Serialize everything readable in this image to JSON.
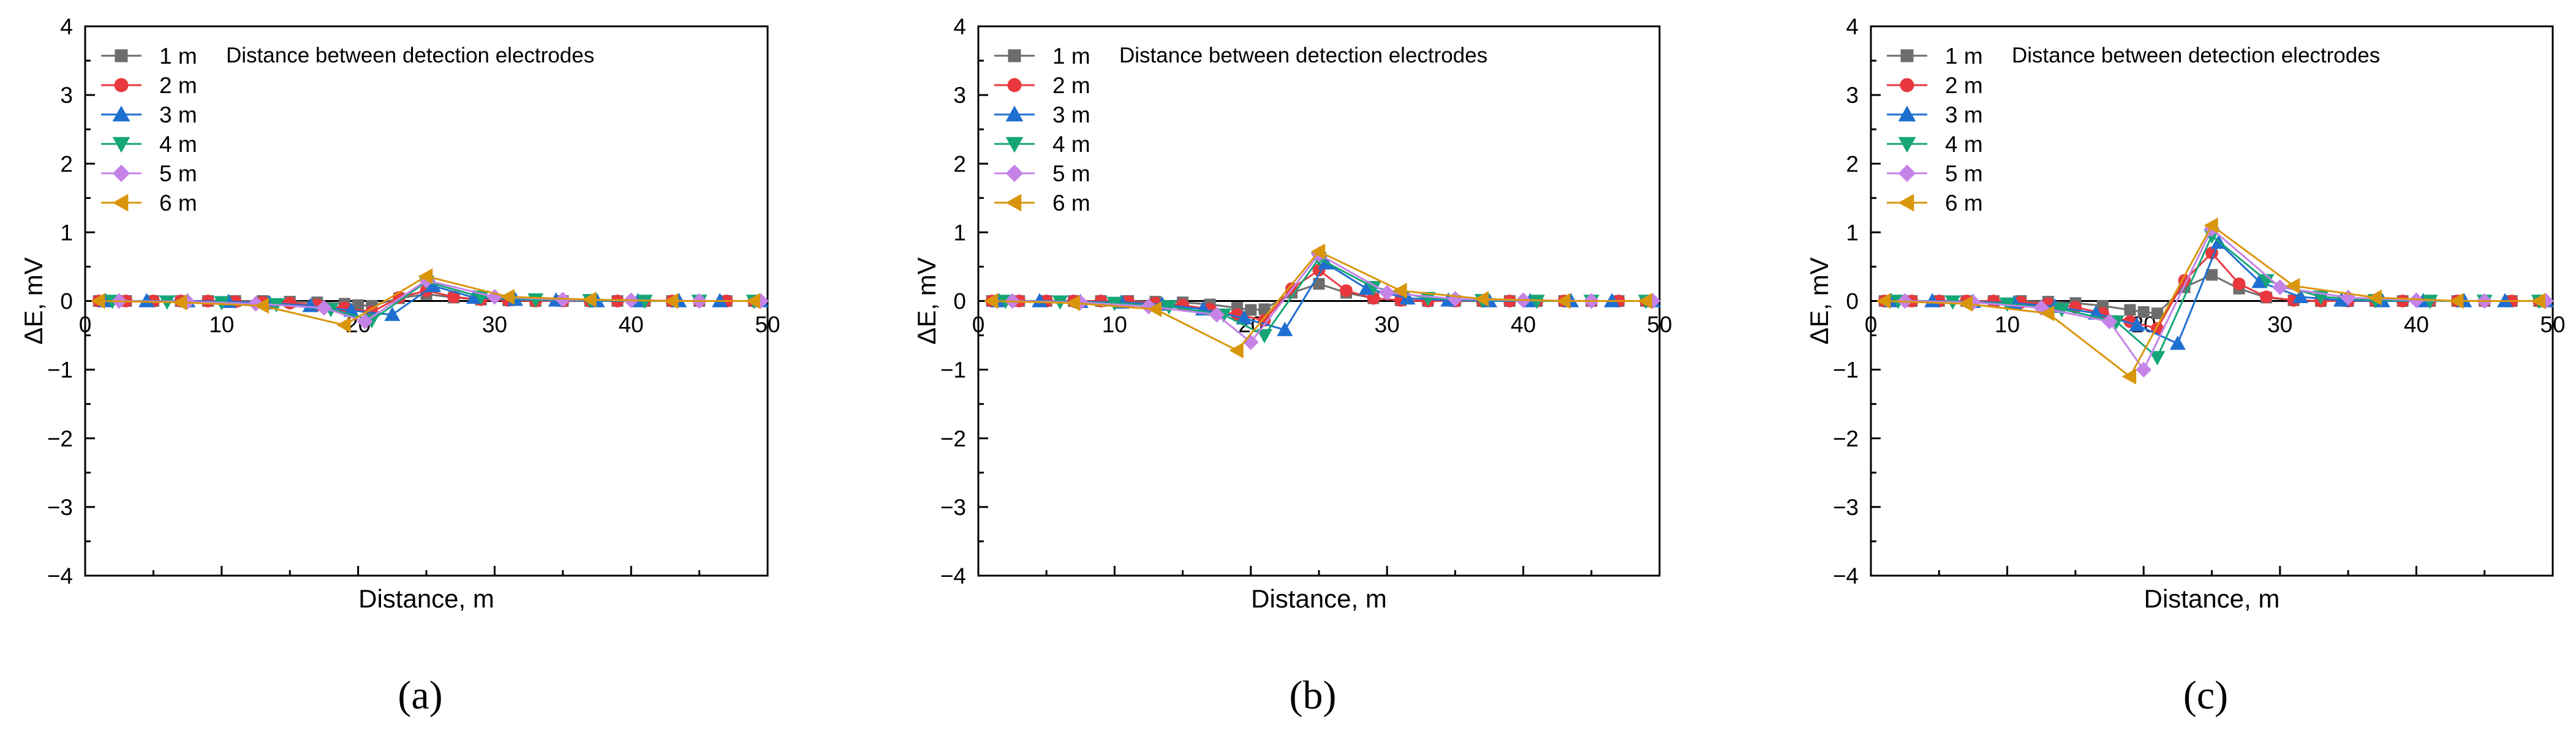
{
  "figure": {
    "panel_labels": [
      "(a)",
      "(b)",
      "(c)"
    ],
    "series_colors": [
      "#6d6d6d",
      "#e8383d",
      "#1f6fd0",
      "#15a677",
      "#c583e8",
      "#d9960c"
    ],
    "series_markers": [
      "square-icon",
      "circle-icon",
      "triangle-up-icon",
      "triangle-down-icon",
      "diamond-icon",
      "triangle-left-icon"
    ]
  },
  "chart_data": [
    {
      "type": "line",
      "panel": "(a)",
      "title": "",
      "xlabel": "Distance, m",
      "ylabel": "ΔE, mV",
      "xlim": [
        0,
        50
      ],
      "ylim": [
        -4,
        4
      ],
      "xticks": [
        0,
        10,
        20,
        30,
        40,
        50
      ],
      "yticks": [
        -4,
        -3,
        -2,
        -1,
        0,
        1,
        2,
        3,
        4
      ],
      "legend_title": "Distance between detection electrodes",
      "legend_position": "top-left",
      "series": [
        {
          "name": "1 m",
          "x": [
            1,
            3,
            5,
            7,
            9,
            11,
            13,
            15,
            17,
            19,
            20,
            21,
            23,
            25,
            27,
            29,
            31,
            33,
            35,
            37,
            39,
            41,
            43,
            45,
            47,
            49
          ],
          "y": [
            0,
            0,
            0,
            0,
            0,
            0,
            0,
            -0.01,
            -0.02,
            -0.04,
            -0.06,
            -0.07,
            0.04,
            0.1,
            0.05,
            0.02,
            0.01,
            0,
            0,
            0,
            0,
            0,
            0,
            0,
            0,
            0
          ]
        },
        {
          "name": "2 m",
          "x": [
            1,
            3,
            5,
            7,
            9,
            11,
            13,
            15,
            17,
            19,
            21,
            23,
            25,
            27,
            29,
            31,
            33,
            35,
            37,
            39,
            41,
            43,
            45,
            47,
            49
          ],
          "y": [
            0,
            0,
            0,
            0,
            0,
            -0.01,
            -0.02,
            -0.03,
            -0.06,
            -0.1,
            -0.16,
            0.05,
            0.15,
            0.06,
            0.02,
            0.01,
            0,
            0,
            0,
            0,
            0,
            0,
            0,
            0,
            0
          ]
        },
        {
          "name": "3 m",
          "x": [
            1.5,
            4.5,
            7.5,
            10.5,
            13.5,
            16.5,
            19.5,
            22.5,
            25.5,
            28.5,
            31.5,
            34.5,
            37.5,
            40.5,
            43.5,
            46.5,
            49.5
          ],
          "y": [
            0,
            0,
            0,
            -0.01,
            -0.03,
            -0.07,
            -0.14,
            -0.2,
            0.22,
            0.05,
            0.02,
            0.01,
            0,
            0,
            0,
            0,
            0
          ]
        },
        {
          "name": "4 m",
          "x": [
            2,
            6,
            10,
            14,
            18,
            21,
            25,
            29,
            33,
            37,
            41,
            45,
            49
          ],
          "y": [
            0,
            -0.01,
            -0.02,
            -0.05,
            -0.12,
            -0.28,
            0.28,
            0.06,
            0.02,
            0.01,
            0,
            0,
            0
          ]
        },
        {
          "name": "5 m",
          "x": [
            2.5,
            7.5,
            12.5,
            17.5,
            20.5,
            25,
            30,
            35,
            40,
            45,
            49.5
          ],
          "y": [
            0,
            -0.01,
            -0.04,
            -0.1,
            -0.3,
            0.3,
            0.06,
            0.02,
            0.01,
            0,
            0
          ]
        },
        {
          "name": "6 m",
          "x": [
            1,
            7,
            13,
            19,
            25,
            31,
            37,
            43,
            49
          ],
          "y": [
            0,
            -0.02,
            -0.07,
            -0.35,
            0.36,
            0.06,
            0.02,
            0,
            0
          ]
        }
      ]
    },
    {
      "type": "line",
      "panel": "(b)",
      "title": "",
      "xlabel": "Distance, m",
      "ylabel": "ΔE, mV",
      "xlim": [
        0,
        50
      ],
      "ylim": [
        -4,
        4
      ],
      "xticks": [
        0,
        10,
        20,
        30,
        40,
        50
      ],
      "yticks": [
        -4,
        -3,
        -2,
        -1,
        0,
        1,
        2,
        3,
        4
      ],
      "legend_title": "Distance between detection electrodes",
      "legend_position": "top-left",
      "series": [
        {
          "name": "1 m",
          "x": [
            1,
            3,
            5,
            7,
            9,
            11,
            13,
            15,
            17,
            19,
            20,
            21,
            23,
            25,
            27,
            29,
            31,
            33,
            35,
            37,
            39,
            41,
            43,
            45,
            47,
            49
          ],
          "y": [
            0,
            0,
            0,
            0,
            0,
            0,
            -0.01,
            -0.02,
            -0.05,
            -0.1,
            -0.13,
            -0.12,
            0.12,
            0.25,
            0.12,
            0.04,
            0.01,
            0,
            0,
            0,
            0,
            0,
            0,
            0,
            0,
            0
          ]
        },
        {
          "name": "2 m",
          "x": [
            1,
            3,
            5,
            7,
            9,
            11,
            13,
            15,
            17,
            19,
            21,
            23,
            25,
            27,
            29,
            31,
            33,
            35,
            37,
            39,
            41,
            43,
            45,
            47,
            49
          ],
          "y": [
            0,
            0,
            0,
            0,
            0,
            -0.01,
            -0.03,
            -0.06,
            -0.12,
            -0.2,
            -0.28,
            0.18,
            0.45,
            0.15,
            0.04,
            0.01,
            0,
            0,
            0,
            0,
            0,
            0,
            0,
            0,
            0
          ]
        },
        {
          "name": "3 m",
          "x": [
            1.5,
            4.5,
            7.5,
            10.5,
            13.5,
            16.5,
            19.5,
            22.5,
            25.5,
            28.5,
            31.5,
            34.5,
            37.5,
            40.5,
            43.5,
            46.5,
            49.5
          ],
          "y": [
            0,
            0,
            -0.01,
            -0.02,
            -0.05,
            -0.12,
            -0.25,
            -0.42,
            0.55,
            0.18,
            0.04,
            0.01,
            0,
            0,
            0,
            0,
            0
          ]
        },
        {
          "name": "4 m",
          "x": [
            2,
            6,
            10,
            14,
            18,
            21,
            25,
            29,
            33,
            37,
            41,
            45,
            49
          ],
          "y": [
            0,
            -0.01,
            -0.03,
            -0.08,
            -0.2,
            -0.5,
            0.62,
            0.2,
            0.04,
            0.01,
            0,
            0,
            0
          ]
        },
        {
          "name": "5 m",
          "x": [
            2.5,
            7.5,
            12.5,
            17.5,
            20,
            25,
            30,
            35,
            40,
            45,
            49.5
          ],
          "y": [
            0,
            -0.02,
            -0.08,
            -0.2,
            -0.6,
            0.68,
            0.12,
            0.03,
            0.01,
            0,
            0
          ]
        },
        {
          "name": "6 m",
          "x": [
            1,
            7,
            13,
            19,
            25,
            31,
            37,
            43,
            49
          ],
          "y": [
            0,
            -0.03,
            -0.12,
            -0.72,
            0.72,
            0.15,
            0.03,
            0,
            0
          ]
        }
      ]
    },
    {
      "type": "line",
      "panel": "(c)",
      "title": "",
      "xlabel": "Distance, m",
      "ylabel": "ΔE, mV",
      "xlim": [
        0,
        50
      ],
      "ylim": [
        -4,
        4
      ],
      "xticks": [
        0,
        10,
        20,
        30,
        40,
        50
      ],
      "yticks": [
        -4,
        -3,
        -2,
        -1,
        0,
        1,
        2,
        3,
        4
      ],
      "legend_title": "Distance between detection electrodes",
      "legend_position": "top-left",
      "series": [
        {
          "name": "1 m",
          "x": [
            1,
            3,
            5,
            7,
            9,
            11,
            13,
            15,
            17,
            19,
            20,
            21,
            23,
            25,
            27,
            29,
            31,
            33,
            35,
            37,
            39,
            41,
            43,
            45,
            47,
            49
          ],
          "y": [
            0,
            0,
            0,
            0,
            0,
            0,
            -0.01,
            -0.03,
            -0.07,
            -0.13,
            -0.16,
            -0.18,
            0.2,
            0.38,
            0.18,
            0.05,
            0.01,
            0,
            0,
            0,
            0,
            0,
            0,
            0,
            0,
            0
          ]
        },
        {
          "name": "2 m",
          "x": [
            1,
            3,
            5,
            7,
            9,
            11,
            13,
            15,
            17,
            19,
            21,
            23,
            25,
            27,
            29,
            31,
            33,
            35,
            37,
            39,
            41,
            43,
            45,
            47,
            49
          ],
          "y": [
            0,
            0,
            0,
            0,
            0,
            -0.02,
            -0.04,
            -0.09,
            -0.18,
            -0.3,
            -0.4,
            0.3,
            0.7,
            0.25,
            0.06,
            0.01,
            0,
            0,
            0,
            0,
            0,
            0,
            0,
            0,
            0
          ]
        },
        {
          "name": "3 m",
          "x": [
            1.5,
            4.5,
            7.5,
            10.5,
            13.5,
            16.5,
            19.5,
            22.5,
            25.5,
            28.5,
            31.5,
            34.5,
            37.5,
            40.5,
            43.5,
            46.5,
            49.5
          ],
          "y": [
            0,
            0,
            -0.01,
            -0.03,
            -0.08,
            -0.18,
            -0.35,
            -0.62,
            0.85,
            0.28,
            0.06,
            0.01,
            0,
            0,
            0,
            0,
            0
          ]
        },
        {
          "name": "4 m",
          "x": [
            2,
            6,
            10,
            14,
            18,
            21,
            25,
            29,
            33,
            37,
            41,
            45,
            49
          ],
          "y": [
            0,
            -0.01,
            -0.04,
            -0.12,
            -0.3,
            -0.82,
            0.95,
            0.3,
            0.06,
            0.01,
            0,
            0,
            0
          ]
        },
        {
          "name": "5 m",
          "x": [
            2.5,
            7.5,
            12.5,
            17.5,
            20,
            25,
            30,
            35,
            40,
            45,
            49.5
          ],
          "y": [
            0,
            -0.02,
            -0.1,
            -0.3,
            -1.0,
            1.05,
            0.2,
            0.05,
            0.01,
            0,
            0
          ]
        },
        {
          "name": "6 m",
          "x": [
            1,
            7,
            13,
            19,
            25,
            31,
            37,
            43,
            49
          ],
          "y": [
            0,
            -0.04,
            -0.18,
            -1.1,
            1.1,
            0.22,
            0.05,
            0,
            0
          ]
        }
      ]
    }
  ]
}
